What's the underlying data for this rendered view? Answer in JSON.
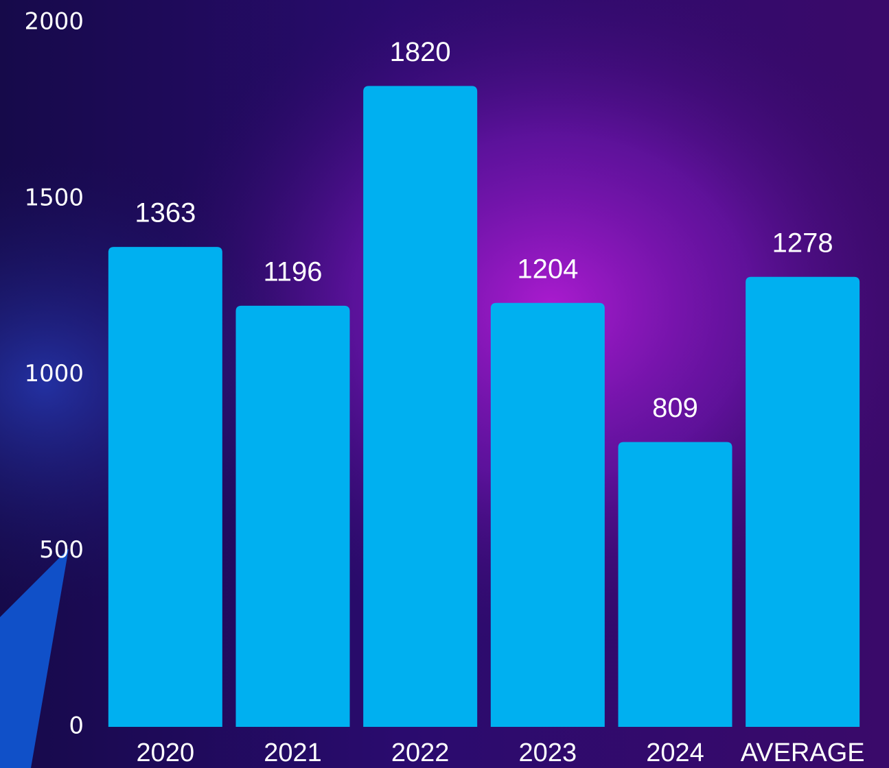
{
  "chart_data": {
    "type": "bar",
    "categories": [
      "2020",
      "2021",
      "2022",
      "2023",
      "2024",
      "AVERAGE"
    ],
    "values": [
      1363,
      1196,
      1820,
      1204,
      809,
      1278
    ],
    "color": "#00b0f0",
    "ylim": [
      0,
      2000
    ],
    "yticks": [
      0,
      500,
      1000,
      1500,
      2000
    ],
    "data_labels": true
  }
}
